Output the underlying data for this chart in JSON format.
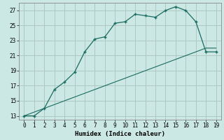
{
  "xlabel": "Humidex (Indice chaleur)",
  "background_color": "#cce8e4",
  "grid_color": "#b0c8c4",
  "line_color": "#1a6b60",
  "x_data": [
    0,
    1,
    2,
    3,
    4,
    5,
    6,
    7,
    8,
    9,
    10,
    11,
    12,
    13,
    14,
    15,
    16,
    17,
    18,
    19
  ],
  "y_curve": [
    13,
    13,
    14,
    16.5,
    17.5,
    18.8,
    21.5,
    23.2,
    23.5,
    25.3,
    25.5,
    26.5,
    26.3,
    26.1,
    27.0,
    27.5,
    27.0,
    25.5,
    21.5,
    21.5
  ],
  "y_line": [
    13,
    13.5,
    14.0,
    14.5,
    15.0,
    15.5,
    16.0,
    16.5,
    17.0,
    17.5,
    18.0,
    18.5,
    19.0,
    19.5,
    20.0,
    20.5,
    21.0,
    21.5,
    22.0,
    22.0
  ],
  "ylim": [
    12.5,
    28
  ],
  "xlim": [
    -0.5,
    19.5
  ],
  "yticks": [
    13,
    15,
    17,
    19,
    21,
    23,
    25,
    27
  ],
  "xticks": [
    0,
    1,
    2,
    3,
    4,
    5,
    6,
    7,
    8,
    9,
    10,
    11,
    12,
    13,
    14,
    15,
    16,
    17,
    18,
    19
  ]
}
